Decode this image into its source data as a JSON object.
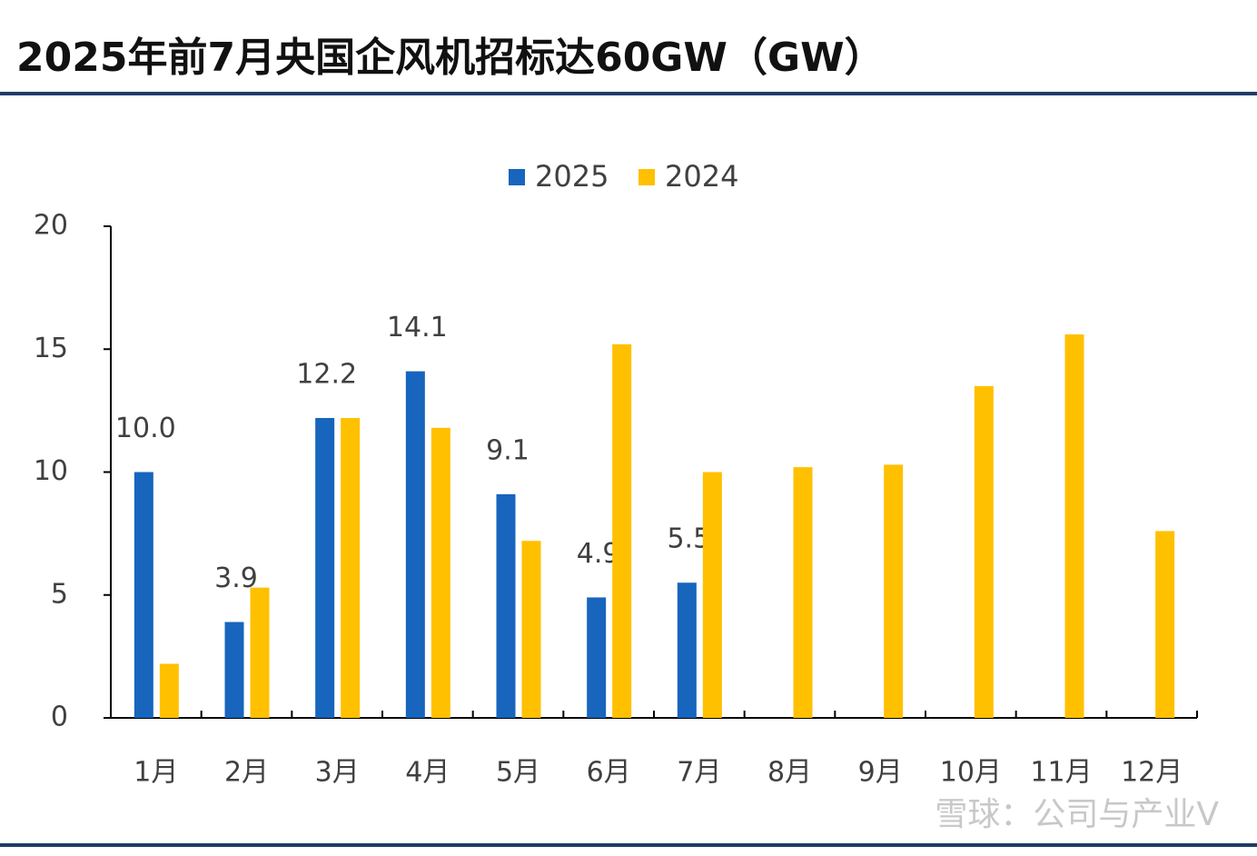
{
  "chart_data": {
    "type": "bar",
    "title": "2025年前7月央国企风机招标达60GW（GW）",
    "watermark": "雪球：公司与产业V",
    "categories": [
      "1月",
      "2月",
      "3月",
      "4月",
      "5月",
      "6月",
      "7月",
      "8月",
      "9月",
      "10月",
      "11月",
      "12月"
    ],
    "series": [
      {
        "name": "2025",
        "color": "#1765bd",
        "values": [
          10.0,
          3.9,
          12.2,
          14.1,
          9.1,
          4.9,
          5.5,
          null,
          null,
          null,
          null,
          null
        ],
        "value_labels": [
          "10.0",
          "3.9",
          "12.2",
          "14.1",
          "9.1",
          "4.9",
          "5.5",
          null,
          null,
          null,
          null,
          null
        ]
      },
      {
        "name": "2024",
        "color": "#ffc000",
        "values": [
          2.2,
          5.3,
          12.2,
          11.8,
          7.2,
          15.2,
          10.0,
          10.2,
          10.3,
          13.5,
          15.6,
          7.6
        ]
      }
    ],
    "ylim": [
      0,
      20
    ],
    "yticks": [
      0,
      5,
      10,
      15,
      20
    ],
    "grid": false,
    "legend": "top"
  }
}
